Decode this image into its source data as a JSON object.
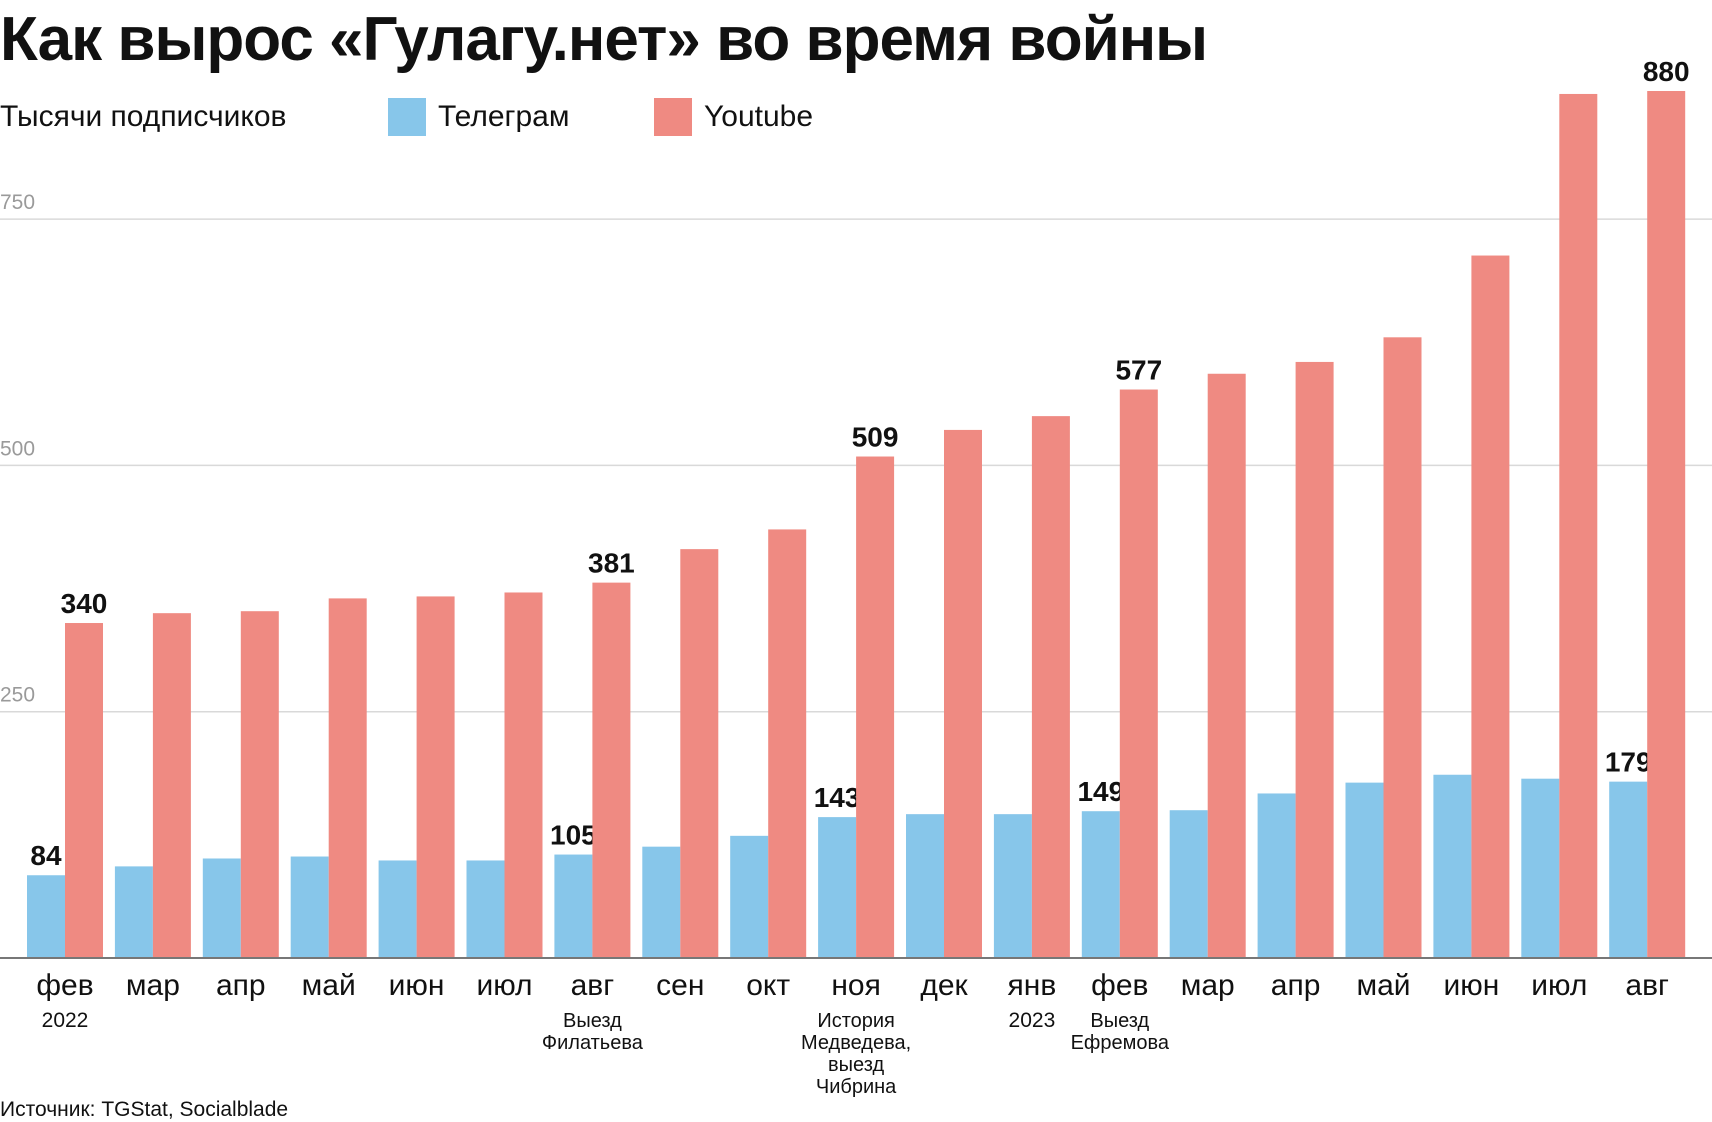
{
  "chart_data": {
    "type": "bar",
    "title": "Как вырос «Гулагу.нет» во время войны",
    "ylabel": "Тысячи подписчиков",
    "source": "Источник: TGStat, Socialblade",
    "ylim": [
      0,
      980
    ],
    "yticks": [
      250,
      500,
      750
    ],
    "grid": true,
    "legend_position": "top",
    "categories": [
      "фев",
      "мар",
      "апр",
      "май",
      "июн",
      "июл",
      "авг",
      "сен",
      "окт",
      "ноя",
      "дек",
      "янв",
      "фев",
      "мар",
      "апр",
      "май",
      "июн",
      "июл",
      "авг"
    ],
    "year_labels": [
      "2022",
      "",
      "",
      "",
      "",
      "",
      "",
      "",
      "",
      "",
      "",
      "2023",
      "",
      "",
      "",
      "",
      "",
      "",
      ""
    ],
    "annotations": [
      "",
      "",
      "",
      "",
      "",
      "",
      "Выезд\nФилатьева",
      "",
      "",
      "История\nМедведева,\nвыезд\nЧибрина",
      "",
      "",
      "Выезд\nЕфремова",
      "",
      "",
      "",
      "",
      "",
      ""
    ],
    "series": [
      {
        "name": "Телеграм",
        "color": "#87c6ea",
        "values": [
          84,
          93,
          101,
          103,
          99,
          99,
          105,
          113,
          124,
          143,
          146,
          146,
          149,
          150,
          167,
          178,
          186,
          182,
          179
        ],
        "labels": [
          "84",
          "",
          "",
          "",
          "",
          "",
          "105",
          "",
          "",
          "143",
          "",
          "",
          "149",
          "",
          "",
          "",
          "",
          "",
          "179"
        ]
      },
      {
        "name": "Youtube",
        "color": "#ef8a82",
        "values": [
          340,
          350,
          352,
          365,
          367,
          371,
          381,
          415,
          435,
          509,
          536,
          550,
          577,
          593,
          605,
          630,
          713,
          877,
          880
        ],
        "labels": [
          "340",
          "",
          "",
          "",
          "",
          "",
          "381",
          "",
          "",
          "509",
          "",
          "",
          "577",
          "",
          "",
          "",
          "",
          "",
          "880"
        ]
      }
    ]
  }
}
